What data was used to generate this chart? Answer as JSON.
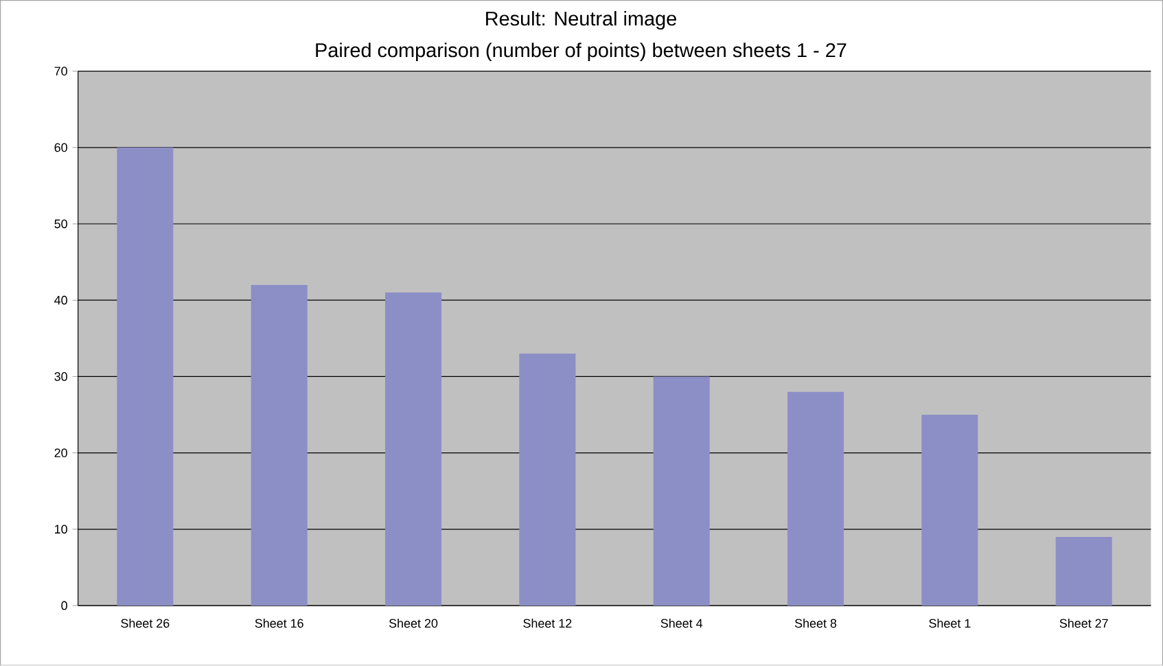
{
  "chart_data": {
    "type": "bar",
    "title": "Result: Neutral image",
    "subtitle": "Paired comparison (number of points) between sheets 1 - 27",
    "categories": [
      "Sheet 26",
      "Sheet 16",
      "Sheet 20",
      "Sheet 12",
      "Sheet 4",
      "Sheet 8",
      "Sheet 1",
      "Sheet 27"
    ],
    "values": [
      60,
      42,
      41,
      33,
      30,
      28,
      25,
      9
    ],
    "color": "#8c8fc6",
    "ylim": [
      0,
      70
    ],
    "yticks": [
      0,
      10,
      20,
      30,
      40,
      50,
      60,
      70
    ],
    "grid": "y"
  }
}
